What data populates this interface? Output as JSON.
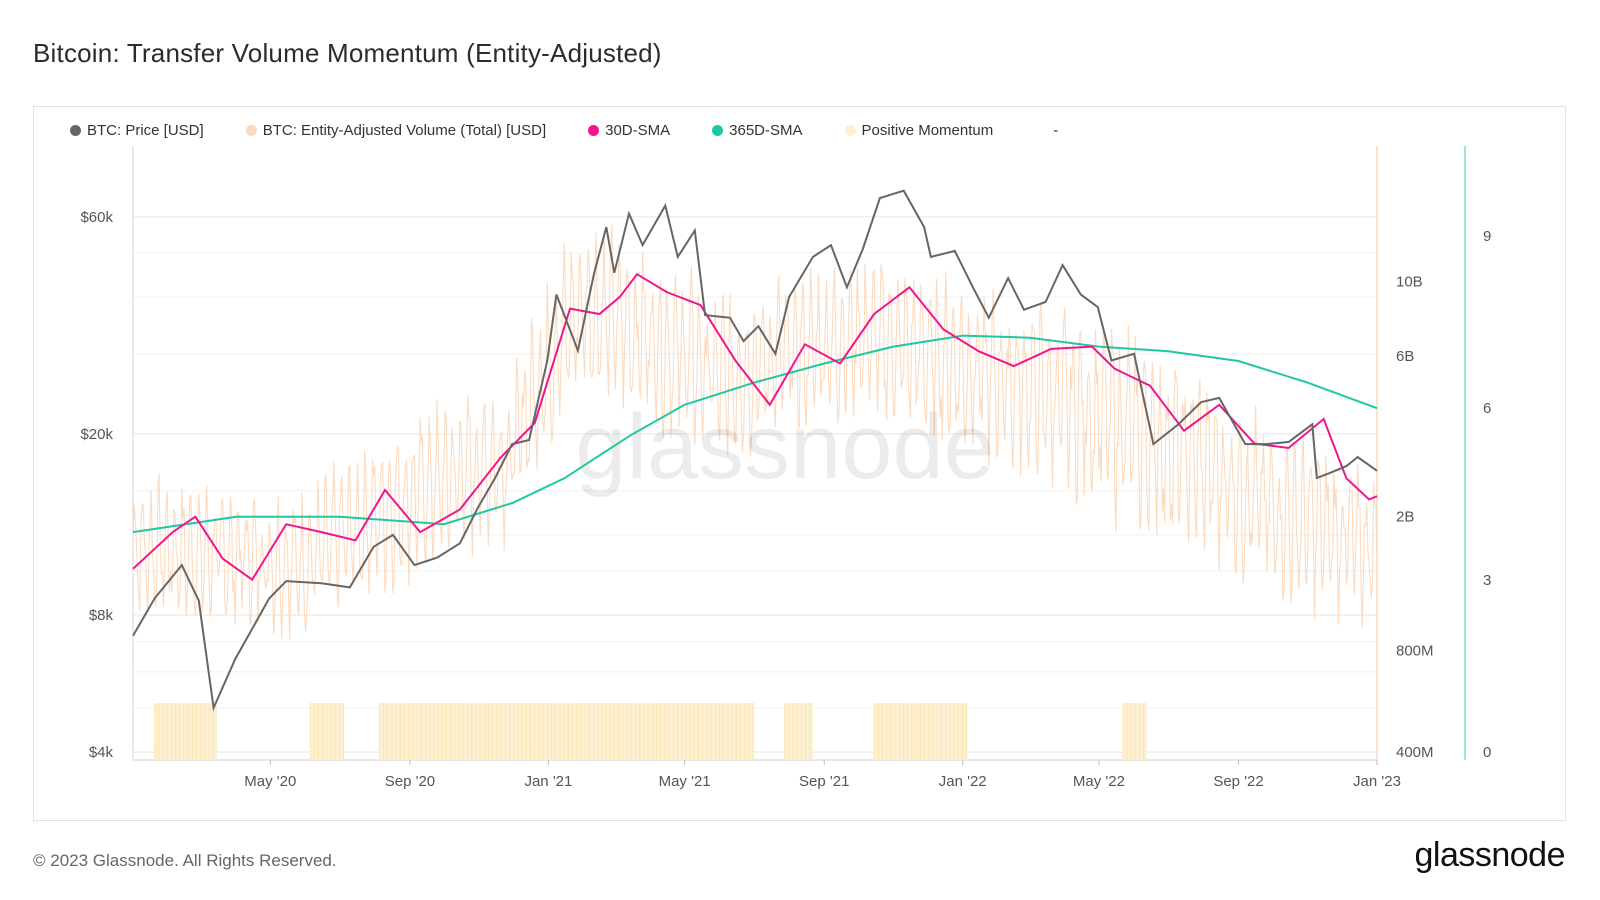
{
  "page": {
    "title": "Bitcoin: Transfer Volume Momentum (Entity-Adjusted)",
    "footer": "© 2023 Glassnode. All Rights Reserved.",
    "brand": "glassnode",
    "watermark": "glassnode"
  },
  "legend": [
    {
      "label": "BTC: Price [USD]",
      "color": "#666666"
    },
    {
      "label": "BTC: Entity-Adjusted Volume (Total) [USD]",
      "color": "#fcd9bd"
    },
    {
      "label": "30D-SMA",
      "color": "#f0168c"
    },
    {
      "label": "365D-SMA",
      "color": "#1fc8a3"
    },
    {
      "label": "Positive Momentum",
      "color": "#fdf0d0"
    },
    {
      "label": "-",
      "color": ""
    }
  ],
  "chart_data": {
    "type": "line",
    "title": "Bitcoin: Transfer Volume Momentum (Entity-Adjusted)",
    "x_range": [
      "2020-01-01",
      "2023-01-01"
    ],
    "x_ticks": [
      {
        "label": "May '20",
        "date": "2020-05-01"
      },
      {
        "label": "Sep '20",
        "date": "2020-09-01"
      },
      {
        "label": "Jan '21",
        "date": "2021-01-01"
      },
      {
        "label": "May '21",
        "date": "2021-05-01"
      },
      {
        "label": "Sep '21",
        "date": "2021-09-01"
      },
      {
        "label": "Jan '22",
        "date": "2022-01-01"
      },
      {
        "label": "May '22",
        "date": "2022-05-01"
      },
      {
        "label": "Sep '22",
        "date": "2022-09-01"
      },
      {
        "label": "Jan '23",
        "date": "2023-01-01"
      }
    ],
    "y_left": {
      "scale": "log",
      "range": [
        4000,
        80000
      ],
      "ticks": [
        {
          "label": "$4k",
          "value": 4000
        },
        {
          "label": "$8k",
          "value": 8000
        },
        {
          "label": "$20k",
          "value": 20000
        },
        {
          "label": "$60k",
          "value": 60000
        }
      ]
    },
    "y_mid": {
      "scale": "log",
      "range": [
        400000000,
        20000000000
      ],
      "ticks": [
        {
          "label": "400M",
          "value": 400000000
        },
        {
          "label": "800M",
          "value": 800000000
        },
        {
          "label": "2B",
          "value": 2000000000
        },
        {
          "label": "6B",
          "value": 6000000000
        },
        {
          "label": "10B",
          "value": 10000000000
        }
      ]
    },
    "y_right": {
      "scale": "linear",
      "range": [
        0,
        10.5
      ],
      "ticks": [
        {
          "label": "0",
          "value": 0
        },
        {
          "label": "3",
          "value": 3
        },
        {
          "label": "6",
          "value": 6
        },
        {
          "label": "9",
          "value": 9
        }
      ]
    },
    "grid": true,
    "legend_position": "top-left",
    "series": [
      {
        "name": "BTC: Price [USD]",
        "color": "#666666",
        "axis": "left",
        "points": [
          [
            "2020-01-01",
            7200
          ],
          [
            "2020-01-20",
            8700
          ],
          [
            "2020-02-13",
            10300
          ],
          [
            "2020-02-28",
            8600
          ],
          [
            "2020-03-12",
            5000
          ],
          [
            "2020-03-31",
            6400
          ],
          [
            "2020-04-30",
            8700
          ],
          [
            "2020-05-15",
            9500
          ],
          [
            "2020-06-15",
            9400
          ],
          [
            "2020-07-10",
            9200
          ],
          [
            "2020-07-31",
            11300
          ],
          [
            "2020-08-17",
            12000
          ],
          [
            "2020-09-05",
            10300
          ],
          [
            "2020-09-25",
            10700
          ],
          [
            "2020-10-15",
            11500
          ],
          [
            "2020-10-31",
            13800
          ],
          [
            "2020-11-15",
            16000
          ],
          [
            "2020-11-30",
            19000
          ],
          [
            "2020-12-15",
            19400
          ],
          [
            "2020-12-31",
            29000
          ],
          [
            "2021-01-08",
            40500
          ],
          [
            "2021-01-27",
            30500
          ],
          [
            "2021-02-10",
            44800
          ],
          [
            "2021-02-21",
            57000
          ],
          [
            "2021-02-28",
            45200
          ],
          [
            "2021-03-13",
            61000
          ],
          [
            "2021-03-25",
            52000
          ],
          [
            "2021-04-14",
            63500
          ],
          [
            "2021-04-25",
            49000
          ],
          [
            "2021-05-10",
            56000
          ],
          [
            "2021-05-19",
            36500
          ],
          [
            "2021-06-10",
            36000
          ],
          [
            "2021-06-22",
            32000
          ],
          [
            "2021-07-05",
            34500
          ],
          [
            "2021-07-20",
            30000
          ],
          [
            "2021-08-01",
            40000
          ],
          [
            "2021-08-22",
            49000
          ],
          [
            "2021-09-07",
            52000
          ],
          [
            "2021-09-21",
            42000
          ],
          [
            "2021-10-05",
            51000
          ],
          [
            "2021-10-20",
            66000
          ],
          [
            "2021-11-10",
            68500
          ],
          [
            "2021-11-28",
            57000
          ],
          [
            "2021-12-04",
            49000
          ],
          [
            "2021-12-25",
            50500
          ],
          [
            "2022-01-10",
            42000
          ],
          [
            "2022-01-24",
            36000
          ],
          [
            "2022-02-10",
            44000
          ],
          [
            "2022-02-24",
            37500
          ],
          [
            "2022-03-15",
            39000
          ],
          [
            "2022-03-30",
            47000
          ],
          [
            "2022-04-15",
            40500
          ],
          [
            "2022-04-30",
            38000
          ],
          [
            "2022-05-12",
            29000
          ],
          [
            "2022-06-01",
            30000
          ],
          [
            "2022-06-18",
            19000
          ],
          [
            "2022-07-10",
            21000
          ],
          [
            "2022-07-30",
            23500
          ],
          [
            "2022-08-15",
            24000
          ],
          [
            "2022-09-07",
            19000
          ],
          [
            "2022-09-25",
            19000
          ],
          [
            "2022-10-15",
            19200
          ],
          [
            "2022-11-05",
            21000
          ],
          [
            "2022-11-09",
            16000
          ],
          [
            "2022-11-20",
            16400
          ],
          [
            "2022-12-05",
            17000
          ],
          [
            "2022-12-15",
            17800
          ],
          [
            "2023-01-01",
            16600
          ]
        ]
      },
      {
        "name": "365D-SMA",
        "color": "#1fc8a3",
        "axis": "mid",
        "points": [
          [
            "2020-01-01",
            1800000000
          ],
          [
            "2020-04-01",
            2000000000
          ],
          [
            "2020-07-01",
            2000000000
          ],
          [
            "2020-10-01",
            1900000000
          ],
          [
            "2020-12-01",
            2200000000
          ],
          [
            "2021-01-15",
            2600000000
          ],
          [
            "2021-03-15",
            3500000000
          ],
          [
            "2021-05-01",
            4300000000
          ],
          [
            "2021-07-01",
            5000000000
          ],
          [
            "2021-09-01",
            5700000000
          ],
          [
            "2021-11-01",
            6400000000
          ],
          [
            "2022-01-01",
            6900000000
          ],
          [
            "2022-03-01",
            6800000000
          ],
          [
            "2022-05-01",
            6400000000
          ],
          [
            "2022-07-01",
            6200000000
          ],
          [
            "2022-09-01",
            5800000000
          ],
          [
            "2022-11-01",
            5000000000
          ],
          [
            "2023-01-01",
            4200000000
          ]
        ]
      },
      {
        "name": "30D-SMA",
        "color": "#f0168c",
        "axis": "mid",
        "points": [
          [
            "2020-01-01",
            1400000000
          ],
          [
            "2020-02-05",
            1800000000
          ],
          [
            "2020-02-25",
            2000000000
          ],
          [
            "2020-03-20",
            1500000000
          ],
          [
            "2020-04-15",
            1300000000
          ],
          [
            "2020-05-15",
            1900000000
          ],
          [
            "2020-06-15",
            1800000000
          ],
          [
            "2020-07-15",
            1700000000
          ],
          [
            "2020-08-10",
            2400000000
          ],
          [
            "2020-09-10",
            1800000000
          ],
          [
            "2020-10-15",
            2100000000
          ],
          [
            "2020-11-20",
            3000000000
          ],
          [
            "2020-12-20",
            3800000000
          ],
          [
            "2021-01-20",
            8300000000
          ],
          [
            "2021-02-15",
            8000000000
          ],
          [
            "2021-03-05",
            9000000000
          ],
          [
            "2021-03-20",
            10500000000
          ],
          [
            "2021-04-15",
            9300000000
          ],
          [
            "2021-05-15",
            8500000000
          ],
          [
            "2021-06-15",
            5800000000
          ],
          [
            "2021-07-15",
            4300000000
          ],
          [
            "2021-08-15",
            6500000000
          ],
          [
            "2021-09-15",
            5700000000
          ],
          [
            "2021-10-15",
            8000000000
          ],
          [
            "2021-11-15",
            9600000000
          ],
          [
            "2021-12-15",
            7200000000
          ],
          [
            "2022-01-15",
            6200000000
          ],
          [
            "2022-02-15",
            5600000000
          ],
          [
            "2022-03-20",
            6300000000
          ],
          [
            "2022-04-25",
            6400000000
          ],
          [
            "2022-05-15",
            5500000000
          ],
          [
            "2022-06-15",
            4900000000
          ],
          [
            "2022-07-15",
            3600000000
          ],
          [
            "2022-08-15",
            4300000000
          ],
          [
            "2022-09-15",
            3300000000
          ],
          [
            "2022-10-15",
            3200000000
          ],
          [
            "2022-11-15",
            3900000000
          ],
          [
            "2022-12-05",
            2600000000
          ],
          [
            "2022-12-25",
            2250000000
          ],
          [
            "2023-01-01",
            2300000000
          ]
        ]
      }
    ],
    "volume_series": {
      "name": "BTC: Entity-Adjusted Volume (Total) [USD]",
      "color": "#fcd9bd",
      "axis": "mid",
      "note_values": "daily volume oscillates roughly between 0.8x and 2x the 30D-SMA",
      "range_per_period": [
        [
          "2020-01-01",
          900000000,
          2800000000
        ],
        [
          "2020-06-01",
          800000000,
          2500000000
        ],
        [
          "2020-12-01",
          1500000000,
          6000000000
        ],
        [
          "2021-02-01",
          4000000000,
          17000000000
        ],
        [
          "2021-06-01",
          2500000000,
          10000000000
        ],
        [
          "2021-10-01",
          3500000000,
          13000000000
        ],
        [
          "2022-02-01",
          2500000000,
          10000000000
        ],
        [
          "2022-06-01",
          1500000000,
          8000000000
        ],
        [
          "2022-10-01",
          1000000000,
          4000000000
        ],
        [
          "2023-01-01",
          800000000,
          3000000000
        ]
      ]
    },
    "positive_momentum_periods": [
      [
        "2020-01-20",
        "2020-03-15"
      ],
      [
        "2020-06-05",
        "2020-07-05"
      ],
      [
        "2020-08-05",
        "2021-07-01"
      ],
      [
        "2021-07-28",
        "2021-08-22"
      ],
      [
        "2021-10-15",
        "2022-01-05"
      ],
      [
        "2022-05-22",
        "2022-06-12"
      ]
    ]
  }
}
